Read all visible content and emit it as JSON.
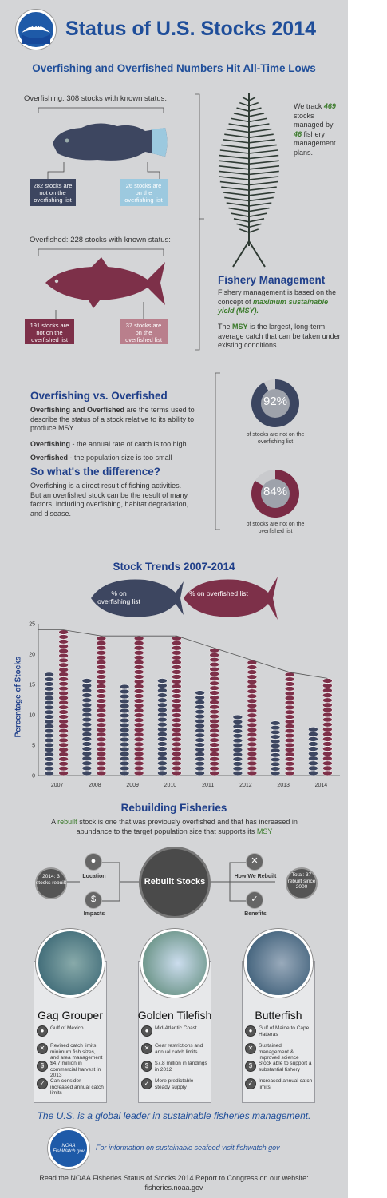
{
  "header": {
    "logo_text": "NOAA",
    "title": "Status of U.S. Stocks 2014",
    "subtitle": "Overfishing and Overfished Numbers Hit All-Time Lows"
  },
  "overfishing_section": {
    "label": "Overfishing: 308 stocks with known status:",
    "left_box": "282 stocks are not on the overfishing list",
    "right_box": "26 stocks are on the overfishing list"
  },
  "overfished_section": {
    "label": "Overfished: 228 stocks with known status:",
    "left_box": "191 stocks are not on the overfished list",
    "right_box": "37 stocks are on the overfished list"
  },
  "tracking": {
    "text_a": "We track",
    "stocks": "469",
    "text_b": "stocks managed by",
    "plans": "46",
    "text_c": "fishery management plans."
  },
  "fishery_management": {
    "heading": "Fishery Management",
    "p1_a": "Fishery management is based on the concept of",
    "p1_b": "maximum sustainable yield (MSY).",
    "p2_a": "The",
    "p2_b": "MSY",
    "p2_c": "is the largest, long-term average catch that can be taken under existing conditions."
  },
  "definitions": {
    "heading": "Overfishing vs. Overfished",
    "intro_bold": "Overfishing and Overfished",
    "intro_rest": "are the terms used to describe the status of a stock relative to its ability to produce MSY.",
    "def1_bold": "Overfishing",
    "def1_rest": "- the annual rate of catch is too high",
    "def2_bold": "Overfished",
    "def2_rest": "- the population size is too small",
    "heading2": "So what's the difference?",
    "diff_text": "Overfishing is a direct result of fishing activities. But an overfished stock can be the result of many factors, including overfishing, habitat degradation, and disease."
  },
  "dials": [
    {
      "value": "92%",
      "fraction": 0.92,
      "caption": "of stocks are not on the overfishing list",
      "color": "#3b4560"
    },
    {
      "value": "84%",
      "fraction": 0.84,
      "caption": "of stocks are not on the overfished list",
      "color": "#7a2b45"
    }
  ],
  "colors": {
    "navy_fish": "#3d4660",
    "maroon_fish": "#7d3049",
    "light_blue": "#9cc9df",
    "pink": "#b97f8c",
    "title_blue": "#1f4e9a"
  },
  "chart_data": {
    "type": "bar",
    "title": "Stock Trends 2007-2014",
    "legend": [
      "% on overfishing list",
      "% on overfished list"
    ],
    "ylabel": "Percentage of Stocks",
    "xlabel": "",
    "ylim": [
      0,
      25
    ],
    "yticks": [
      "0",
      "5",
      "10",
      "15",
      "20",
      "25"
    ],
    "categories": [
      "2007",
      "2008",
      "2009",
      "2010",
      "2011",
      "2012",
      "2013",
      "2014"
    ],
    "series": [
      {
        "name": "% on overfishing list",
        "values": [
          17,
          16,
          15,
          16,
          14,
          10,
          9,
          8
        ],
        "color": "#3d4660"
      },
      {
        "name": "% on overfished list",
        "values": [
          24,
          23,
          23,
          23,
          21,
          19,
          17,
          16
        ],
        "color": "#7d3049"
      }
    ]
  },
  "rebuilding": {
    "heading": "Rebuilding Fisheries",
    "text_a": "A",
    "rebuilt": "rebuilt",
    "text_b": "stock is one that was previously overfished and that has increased in abundance to the target population size that supports its",
    "msy": "MSY",
    "center": "Rebuilt Stocks",
    "left_badge": "2014: 3 stocks rebuilt",
    "right_badge": "Total: 37 rebuilt since 2000",
    "nodes": [
      "Location",
      "Impacts",
      "How We Rebuilt",
      "Benefits"
    ]
  },
  "cards": [
    {
      "name": "Gag Grouper",
      "items": [
        "Gulf of Mexico",
        "Revised catch limits, minimum fish sizes, and area management",
        "$4.7 million in commercial harvest in 2013",
        "Can consider increased annual catch limits"
      ]
    },
    {
      "name": "Golden Tilefish",
      "items": [
        "Mid-Atlantic Coast",
        "Gear restrictions and annual catch limits",
        "$7.8 million in landings in 2012",
        "More predictable steady supply"
      ]
    },
    {
      "name": "Butterfish",
      "items": [
        "Gulf of Maine to Cape Hatteras",
        "Sustained management & improved science",
        "Stock able to support a substantial fishery",
        "Increased annual catch limits"
      ]
    }
  ],
  "footer": {
    "leader": "The U.S. is a global leader in sustainable fisheries management.",
    "fishwatch_logo": "NOAA FishWatch.gov",
    "fishwatch_text": "For information on sustainable seafood visit fishwatch.gov",
    "report_a": "Read the NOAA Fisheries Status of Stocks 2014 Report to Congress on our website:",
    "report_b": "fisheries.noaa.gov"
  }
}
